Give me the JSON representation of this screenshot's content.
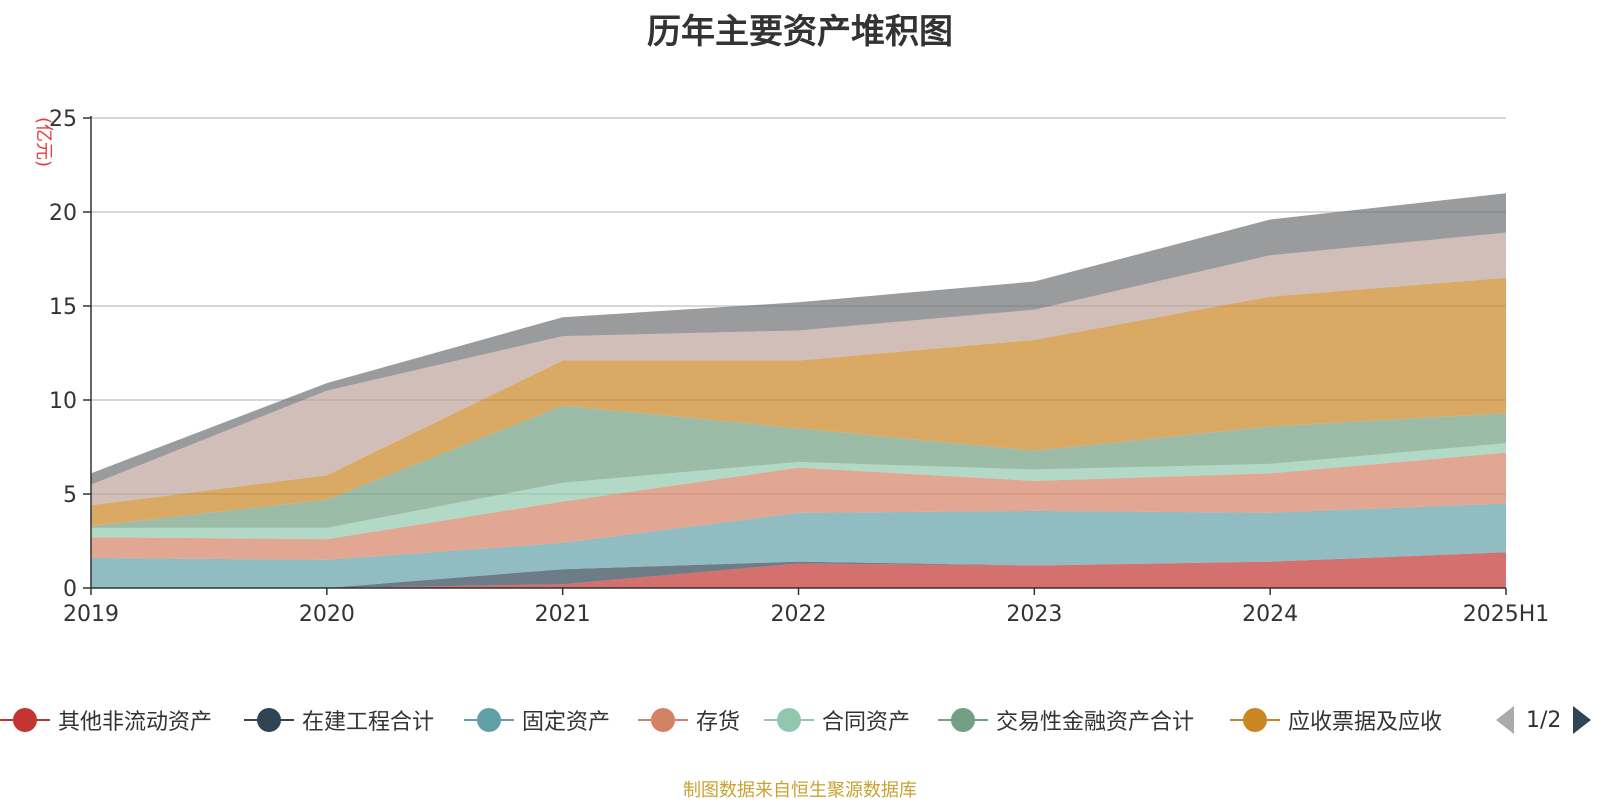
{
  "title": "历年主要资产堆积图",
  "source": "制图数据来自恒生聚源数据库",
  "chart_data": {
    "type": "area",
    "stacked": true,
    "title": "历年主要资产堆积图",
    "ylabel": "(亿元)",
    "ylim": [
      0,
      25
    ],
    "yticks": [
      0,
      5,
      10,
      15,
      20,
      25
    ],
    "grid": true,
    "categories": [
      "2019",
      "2020",
      "2021",
      "2022",
      "2023",
      "2024",
      "2025H1"
    ],
    "series": [
      {
        "name": "其他非流动资产",
        "color": "#c23531",
        "values": [
          0.0,
          0.0,
          0.2,
          1.3,
          1.2,
          1.4,
          1.9
        ]
      },
      {
        "name": "在建工程合计",
        "color": "#2f4554",
        "values": [
          0.0,
          0.0,
          0.8,
          0.1,
          0.0,
          0.0,
          0.0
        ]
      },
      {
        "name": "固定资产",
        "color": "#61a0a8",
        "values": [
          1.6,
          1.5,
          1.4,
          2.6,
          2.9,
          2.6,
          2.6
        ]
      },
      {
        "name": "存货",
        "color": "#d48265",
        "values": [
          1.1,
          1.1,
          2.2,
          2.4,
          1.6,
          2.1,
          2.7
        ]
      },
      {
        "name": "合同资产",
        "color": "#91c7ae",
        "values": [
          0.5,
          0.6,
          1.0,
          0.3,
          0.6,
          0.5,
          0.5
        ]
      },
      {
        "name": "交易性金融资产合计",
        "color": "#749f83",
        "values": [
          0.1,
          1.5,
          4.1,
          1.8,
          1.0,
          2.0,
          1.6
        ]
      },
      {
        "name": "应收票据及应收",
        "color": "#ca8622",
        "values": [
          1.1,
          1.3,
          2.4,
          3.6,
          5.9,
          6.9,
          7.2
        ]
      },
      {
        "color": "#bda29a",
        "values": [
          1.1,
          4.5,
          1.3,
          1.6,
          1.6,
          2.2,
          2.4
        ]
      },
      {
        "color": "#6e7074",
        "values": [
          0.6,
          0.4,
          1.0,
          1.5,
          1.5,
          1.9,
          2.1
        ]
      }
    ]
  },
  "legend": {
    "items": [
      {
        "label": "其他非流动资产",
        "color": "#c23531"
      },
      {
        "label": "在建工程合计",
        "color": "#2f4554"
      },
      {
        "label": "固定资产",
        "color": "#61a0a8"
      },
      {
        "label": "存货",
        "color": "#d48265"
      },
      {
        "label": "合同资产",
        "color": "#91c7ae"
      },
      {
        "label": "交易性金融资产合计",
        "color": "#749f83"
      },
      {
        "label": "应收票据及应收",
        "color": "#ca8622"
      }
    ],
    "page": "1/2"
  }
}
